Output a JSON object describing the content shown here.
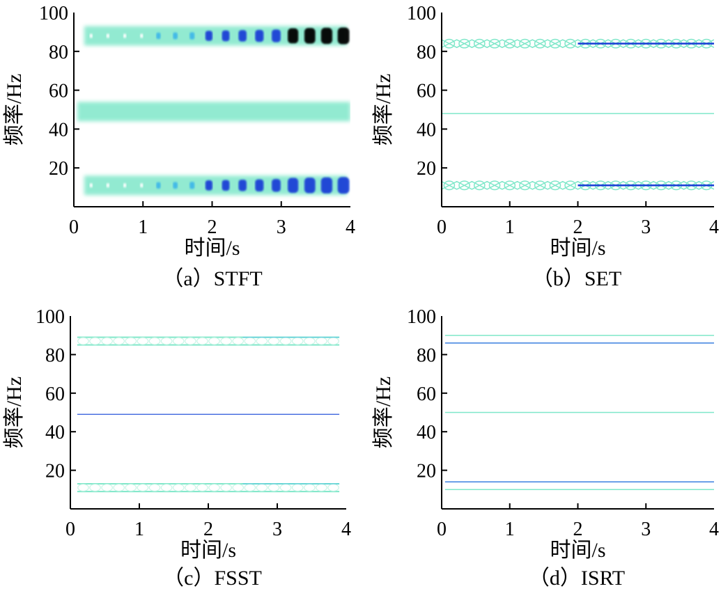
{
  "chart_data": [
    {
      "type": "heatmap",
      "method": "STFT",
      "caption": "（a）STFT",
      "xlabel": "时间/s",
      "ylabel": "频率/Hz",
      "xlim": [
        0,
        4
      ],
      "ylim": [
        0,
        100
      ],
      "xticks": [
        0,
        1,
        2,
        3,
        4
      ],
      "yticks": [
        20,
        40,
        60,
        80,
        100
      ],
      "bands": [
        {
          "freq": 88,
          "start": 0.15,
          "end": 3.95,
          "style": "blob",
          "spread": 5
        },
        {
          "freq": 49,
          "start": 0.05,
          "end": 4.0,
          "style": "band",
          "spread": 5
        },
        {
          "freq": 11,
          "start": 0.15,
          "end": 3.95,
          "style": "blob",
          "spread": 5
        }
      ]
    },
    {
      "type": "heatmap",
      "method": "SET",
      "caption": "（b）SET",
      "xlabel": "时间/s",
      "ylabel": "频率/Hz",
      "xlim": [
        0,
        4
      ],
      "ylim": [
        0,
        100
      ],
      "xticks": [
        0,
        1,
        2,
        3,
        4
      ],
      "yticks": [
        20,
        40,
        60,
        80,
        100
      ],
      "bands": [
        {
          "freq": 84,
          "start": 0.0,
          "end": 4.0,
          "style": "wave",
          "spread": 2
        },
        {
          "freq": 48,
          "start": 0.0,
          "end": 4.0,
          "style": "line",
          "spread": 0
        },
        {
          "freq": 11,
          "start": 0.0,
          "end": 4.0,
          "style": "wave",
          "spread": 2
        }
      ]
    },
    {
      "type": "heatmap",
      "method": "FSST",
      "caption": "（c）FSST",
      "xlabel": "时间/s",
      "ylabel": "频率/Hz",
      "xlim": [
        0,
        4
      ],
      "ylim": [
        0,
        100
      ],
      "xticks": [
        0,
        1,
        2,
        3,
        4
      ],
      "yticks": [
        20,
        40,
        60,
        80,
        100
      ],
      "bands": [
        {
          "freq": 87,
          "start": 0.1,
          "end": 3.9,
          "style": "double",
          "spread": 2
        },
        {
          "freq": 49,
          "start": 0.1,
          "end": 3.9,
          "style": "line",
          "spread": 0
        },
        {
          "freq": 11,
          "start": 0.1,
          "end": 3.9,
          "style": "double",
          "spread": 2
        }
      ]
    },
    {
      "type": "heatmap",
      "method": "ISRT",
      "caption": "（d）ISRT",
      "xlabel": "时间/s",
      "ylabel": "频率/Hz",
      "xlim": [
        0,
        4
      ],
      "ylim": [
        0,
        100
      ],
      "xticks": [
        0,
        1,
        2,
        3,
        4
      ],
      "yticks": [
        20,
        40,
        60,
        80,
        100
      ],
      "bands": [
        {
          "freq": 90,
          "start": 0.05,
          "end": 4.0,
          "style": "line",
          "spread": 0
        },
        {
          "freq": 86,
          "start": 0.05,
          "end": 4.0,
          "style": "line",
          "spread": 0
        },
        {
          "freq": 50,
          "start": 0.05,
          "end": 4.0,
          "style": "line",
          "spread": 0
        },
        {
          "freq": 14,
          "start": 0.05,
          "end": 4.0,
          "style": "line",
          "spread": 0
        },
        {
          "freq": 10,
          "start": 0.05,
          "end": 4.0,
          "style": "line",
          "spread": 0
        }
      ]
    }
  ],
  "colors": {
    "band_light": "#7fe7c9",
    "band_pale": "#c8f5e6",
    "band_mid": "#3fb8e8",
    "band_dark": "#1a3fd6",
    "band_black": "#000000",
    "axis": "#000000"
  }
}
